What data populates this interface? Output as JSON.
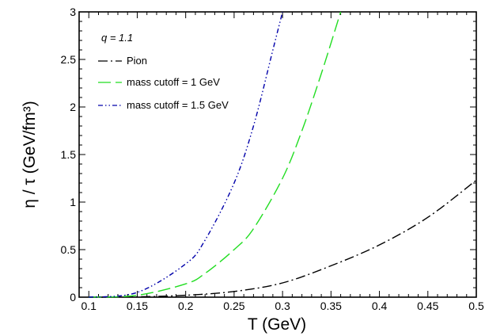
{
  "chart_data": {
    "type": "line",
    "title": "",
    "xlabel": "T (GeV)",
    "ylabel": "η / τ (GeV/fm³)",
    "xlim": [
      0.09,
      0.5
    ],
    "ylim": [
      0,
      3
    ],
    "xticks": [
      "0.1",
      "0.15",
      "0.2",
      "0.25",
      "0.3",
      "0.35",
      "0.4",
      "0.45",
      "0.5"
    ],
    "yticks": [
      "0",
      "0.5",
      "1",
      "1.5",
      "2",
      "2.5",
      "3"
    ],
    "legend_title": "q = 1.1",
    "legend_position": "top-left",
    "grid": false,
    "series": [
      {
        "name": "Pion",
        "color": "#000000",
        "dash": "dash-dot",
        "x": [
          0.1,
          0.15,
          0.2,
          0.25,
          0.3,
          0.35,
          0.4,
          0.45,
          0.5
        ],
        "y": [
          0.0,
          0.003,
          0.02,
          0.06,
          0.15,
          0.33,
          0.55,
          0.84,
          1.23
        ]
      },
      {
        "name": "mass cutoff = 1 GeV",
        "color": "#22dd22",
        "dash": "long-dash",
        "x": [
          0.1,
          0.15,
          0.2,
          0.22,
          0.25,
          0.27,
          0.3,
          0.32,
          0.34,
          0.36
        ],
        "y": [
          0.0,
          0.02,
          0.14,
          0.25,
          0.5,
          0.72,
          1.25,
          1.75,
          2.35,
          3.0
        ]
      },
      {
        "name": "mass cutoff = 1.5 GeV",
        "color": "#0000aa",
        "dash": "dash-dot-dot",
        "x": [
          0.1,
          0.15,
          0.2,
          0.22,
          0.25,
          0.27,
          0.29,
          0.3
        ],
        "y": [
          0.0,
          0.05,
          0.35,
          0.6,
          1.2,
          1.8,
          2.6,
          3.0
        ]
      }
    ]
  }
}
